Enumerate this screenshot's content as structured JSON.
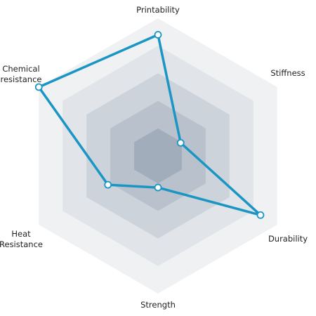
{
  "chart_data": {
    "type": "radar",
    "title": "",
    "axes": [
      {
        "label": [
          "Printability"
        ]
      },
      {
        "label": [
          "Stiffness"
        ]
      },
      {
        "label": [
          "Durability"
        ]
      },
      {
        "label": [
          "Strength"
        ]
      },
      {
        "label": [
          "Heat",
          "Resistance"
        ]
      },
      {
        "label": [
          "Chemical",
          "resistance"
        ]
      }
    ],
    "rings": 5,
    "range": [
      0,
      5
    ],
    "series": [
      {
        "values": [
          4.4,
          0.95,
          4.3,
          1.15,
          2.1,
          5.0
        ]
      }
    ],
    "colors": {
      "series_line": "#1a95c4",
      "marker_fill": "#ffffff",
      "ring_shades": [
        "#f0f1f3",
        "#e1e4e8",
        "#cdd3da",
        "#b9c2cc",
        "#a1adba"
      ]
    },
    "grid": true,
    "legend": "none"
  }
}
